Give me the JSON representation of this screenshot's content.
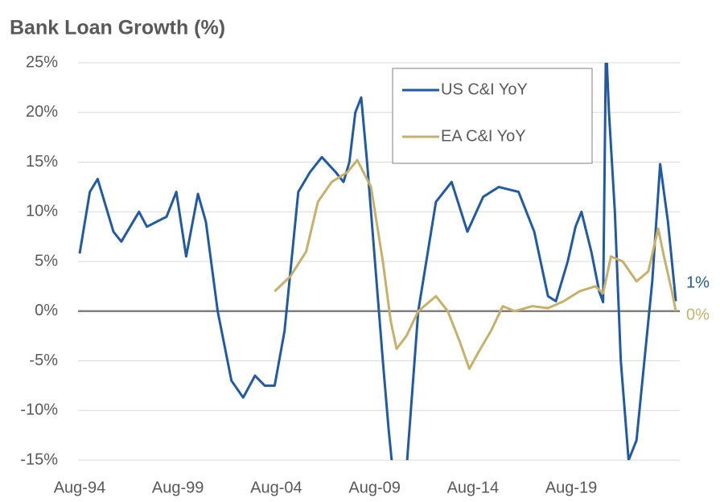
{
  "chart_data": {
    "type": "line",
    "title": "Bank Loan Growth (%)",
    "xlim": [
      1994.5,
      2025.1
    ],
    "xticks": [
      {
        "value": 1994.58,
        "label": "Aug-94"
      },
      {
        "value": 1999.58,
        "label": "Aug-99"
      },
      {
        "value": 2004.58,
        "label": "Aug-04"
      },
      {
        "value": 2009.58,
        "label": "Aug-09"
      },
      {
        "value": 2014.58,
        "label": "Aug-14"
      },
      {
        "value": 2019.58,
        "label": "Aug-19"
      }
    ],
    "ylim": [
      -15,
      25
    ],
    "yticks": [
      {
        "value": 25,
        "label": "25%"
      },
      {
        "value": 20,
        "label": "20%"
      },
      {
        "value": 15,
        "label": "15%"
      },
      {
        "value": 10,
        "label": "10%"
      },
      {
        "value": 5,
        "label": "5%"
      },
      {
        "value": 0,
        "label": "0%"
      },
      {
        "value": -5,
        "label": "-5%"
      },
      {
        "value": -10,
        "label": "-10%"
      },
      {
        "value": -15,
        "label": "-15%"
      }
    ],
    "grid": true,
    "legend": "top-right",
    "series": [
      {
        "name": "US C&I YoY",
        "color": "#1f5aa6",
        "last_label": "1%",
        "x": [
          1994.58,
          1995.1,
          1995.5,
          1996.3,
          1996.7,
          1997.6,
          1998.0,
          1998.5,
          1999.0,
          1999.5,
          2000.0,
          2000.6,
          2001.0,
          2001.6,
          2002.3,
          2002.9,
          2003.5,
          2004.0,
          2004.5,
          2005.0,
          2005.7,
          2006.3,
          2006.9,
          2007.6,
          2008.0,
          2008.3,
          2008.6,
          2008.9,
          2009.2,
          2009.6,
          2010.0,
          2010.3,
          2010.5,
          2011.2,
          2011.8,
          2012.7,
          2013.5,
          2014.3,
          2015.1,
          2015.9,
          2016.9,
          2017.7,
          2018.4,
          2018.8,
          2019.4,
          2019.8,
          2020.1,
          2020.6,
          2021.0,
          2021.2,
          2021.35,
          2021.5,
          2021.8,
          2022.1,
          2022.5,
          2022.9,
          2023.3,
          2023.7,
          2024.1,
          2024.5,
          2024.9
        ],
        "values": [
          5.8,
          12,
          13.3,
          8,
          7,
          10,
          8.5,
          9,
          9.5,
          12,
          5.5,
          11.8,
          9,
          0,
          -7,
          -8.7,
          -6.5,
          -7.5,
          -7.5,
          -2,
          12,
          14,
          15.5,
          14,
          13,
          15,
          20,
          21.5,
          15,
          5,
          -5,
          -12,
          -16,
          -16,
          0,
          11,
          13,
          8,
          11.5,
          12.5,
          12,
          8,
          1.5,
          1,
          5,
          8.5,
          10,
          6,
          2,
          0.9,
          27,
          20,
          10,
          -5,
          -15,
          -13,
          -5,
          3,
          14.8,
          9,
          1
        ]
      },
      {
        "name": "EA C&I YoY",
        "color": "#c9b068",
        "last_label": "0%",
        "x": [
          2004.5,
          2005.3,
          2006.1,
          2006.7,
          2007.4,
          2008.2,
          2008.7,
          2009.4,
          2010.0,
          2010.4,
          2010.7,
          2011.2,
          2011.8,
          2012.7,
          2013.3,
          2013.9,
          2014.4,
          2014.9,
          2015.5,
          2016.1,
          2016.7,
          2017.6,
          2018.4,
          2019.2,
          2020.0,
          2020.8,
          2021.2,
          2021.6,
          2022.2,
          2022.9,
          2023.5,
          2024.0,
          2024.3,
          2024.7,
          2024.9
        ],
        "values": [
          2,
          3.5,
          6,
          11,
          13,
          14,
          15.2,
          12.5,
          5,
          -1,
          -3.8,
          -2.5,
          0,
          1.5,
          0,
          -3,
          -5.8,
          -4,
          -2,
          0.5,
          0,
          0.5,
          0.3,
          1,
          2,
          2.5,
          1.8,
          5.5,
          5,
          3,
          4,
          8.3,
          5.5,
          2,
          0
        ]
      }
    ]
  }
}
